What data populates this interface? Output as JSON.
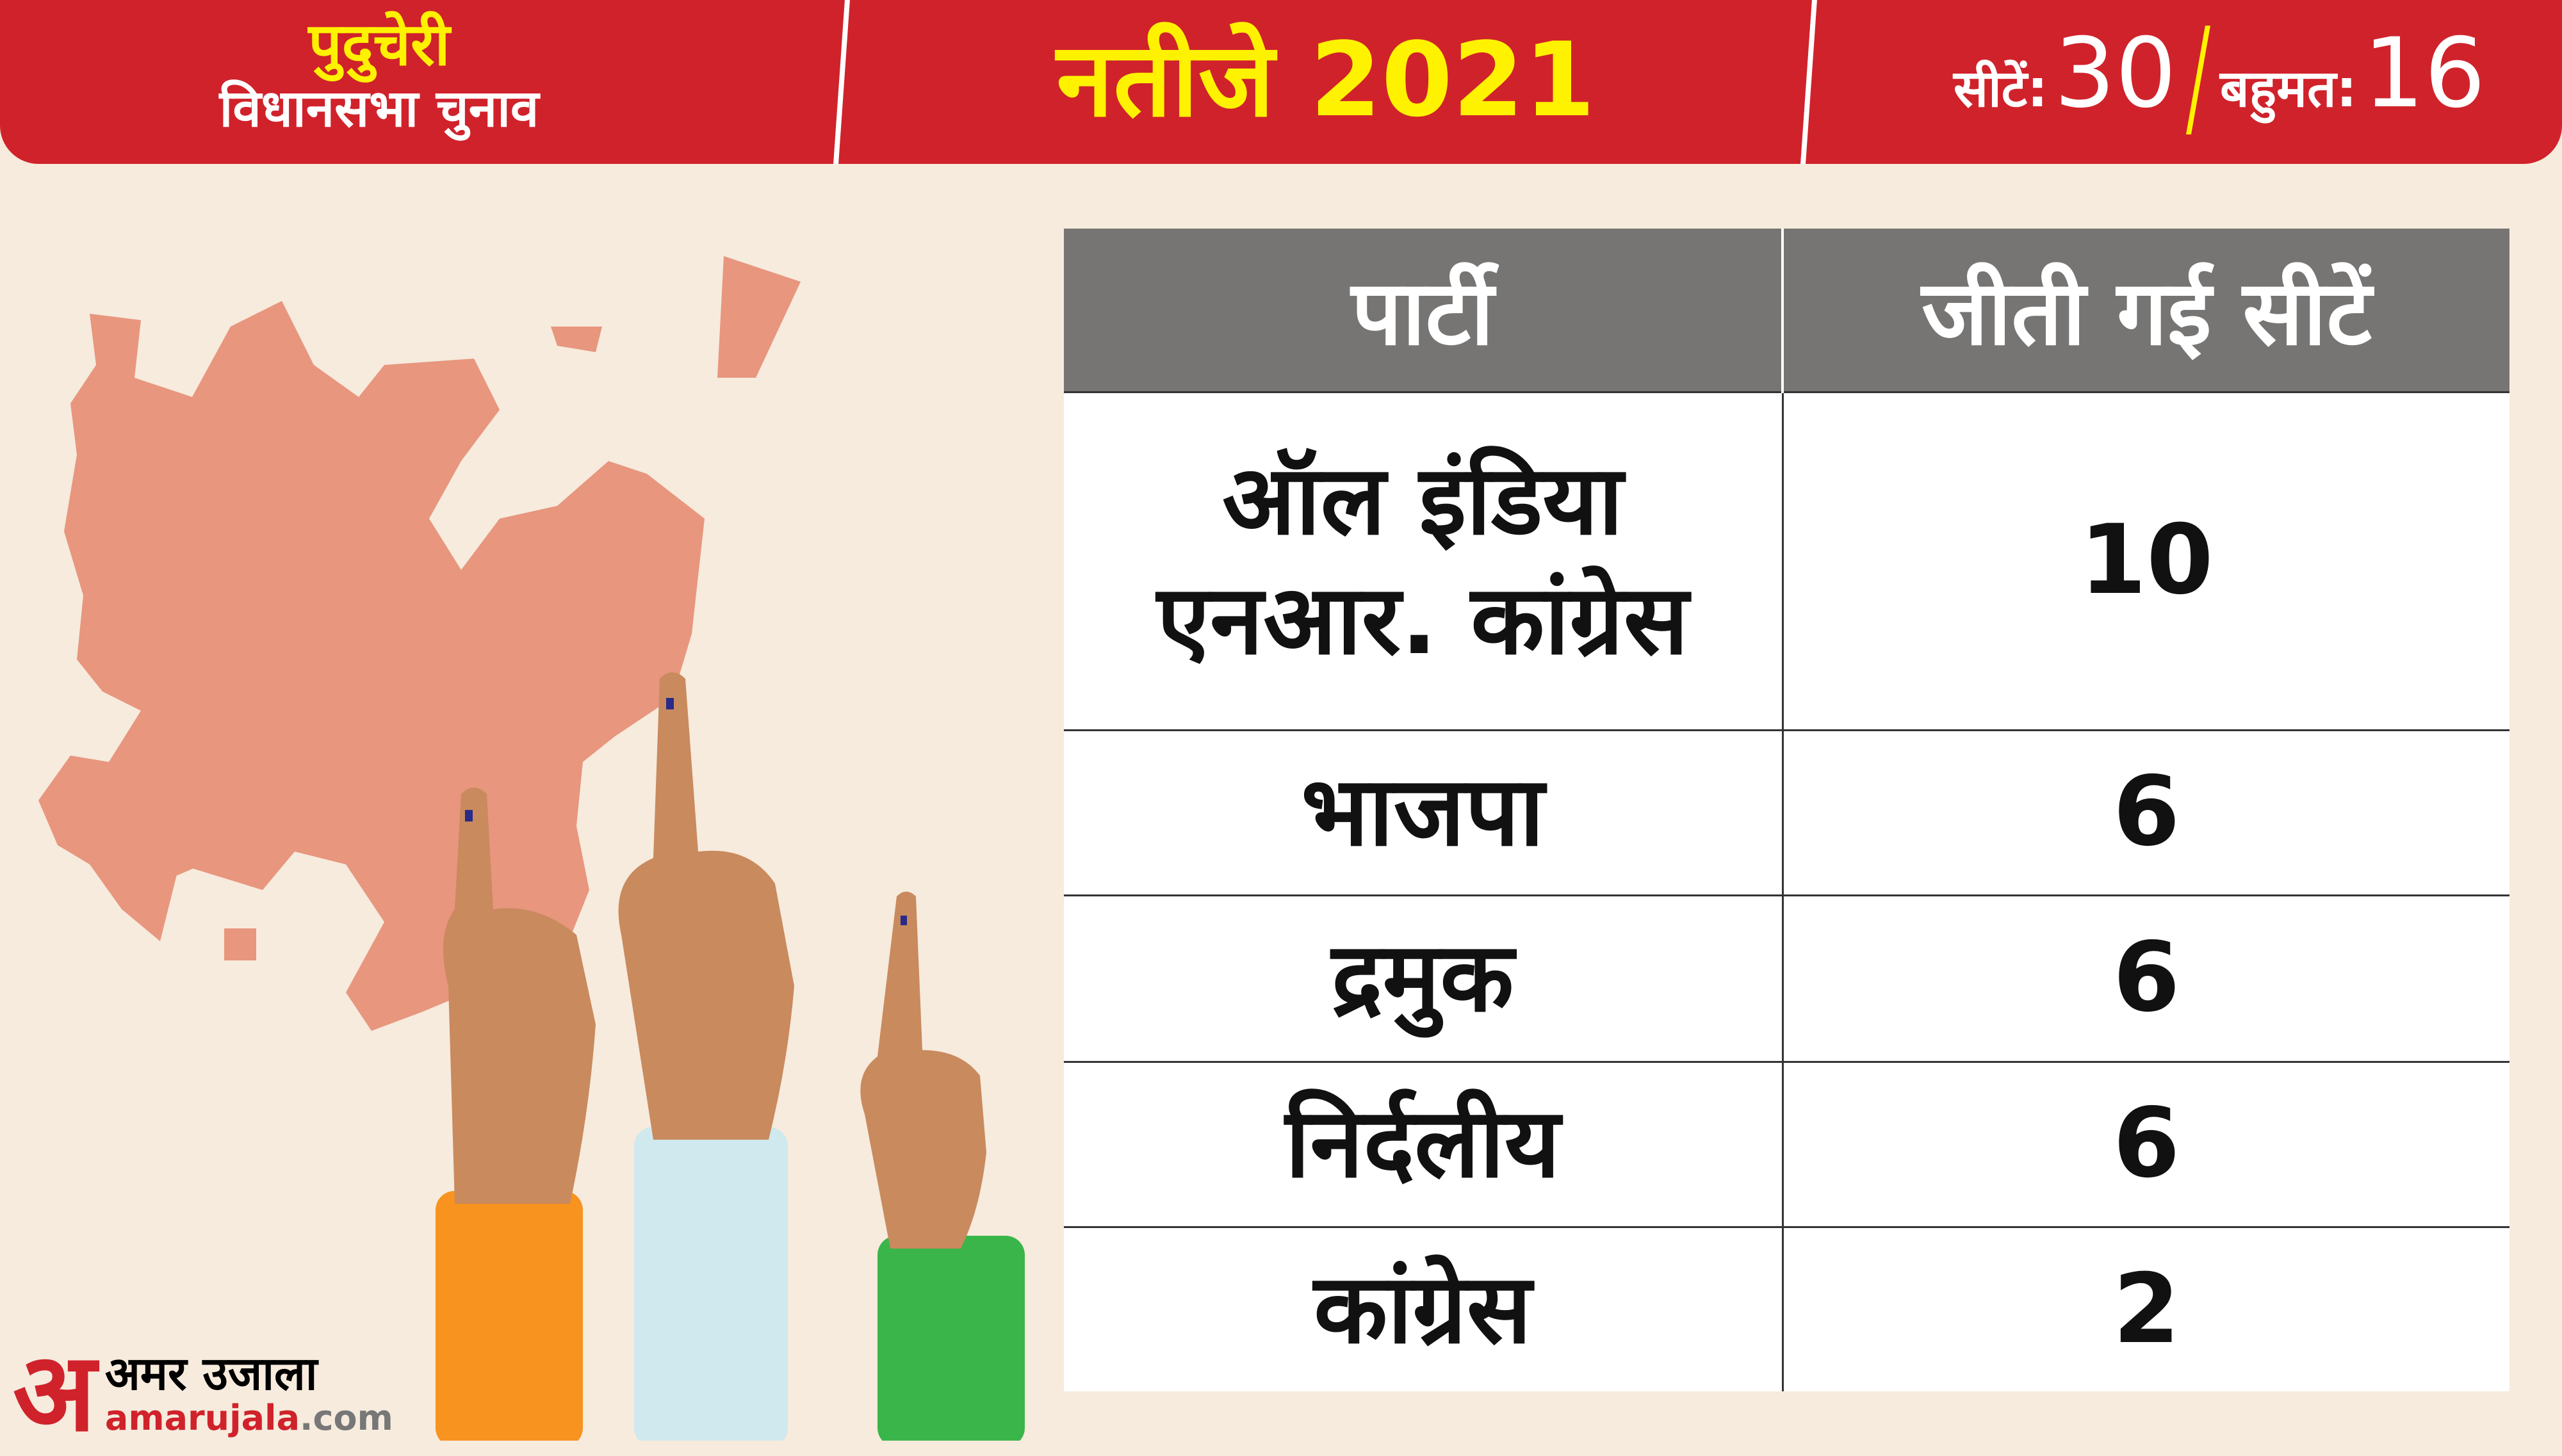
{
  "header": {
    "state": "पुदुचेरी",
    "subtitle": "विधानसभा चुनाव",
    "title": "नतीजे 2021",
    "seats_label": "सीटें:",
    "seats_value": "30",
    "majority_label": "बहुमत:",
    "majority_value": "16"
  },
  "table": {
    "headers": [
      "पार्टी",
      "जीती गई सीटें"
    ],
    "rows": [
      {
        "party": "ऑल इंडिया एनआर. कांग्रेस",
        "seats": "10"
      },
      {
        "party": "भाजपा",
        "seats": "6"
      },
      {
        "party": "द्रमुक",
        "seats": "6"
      },
      {
        "party": "निर्दलीय",
        "seats": "6"
      },
      {
        "party": "कांग्रेस",
        "seats": "2"
      }
    ]
  },
  "logo": {
    "mark": "अ",
    "name": "अमर उजाला",
    "domain_main": "amarujala",
    "domain_tld": ".com"
  },
  "colors": {
    "header_red": "#d0222b",
    "title_yellow": "#fff200",
    "table_header_gray": "#767573",
    "map": "#e8967e",
    "background": "#f6ebdd"
  }
}
